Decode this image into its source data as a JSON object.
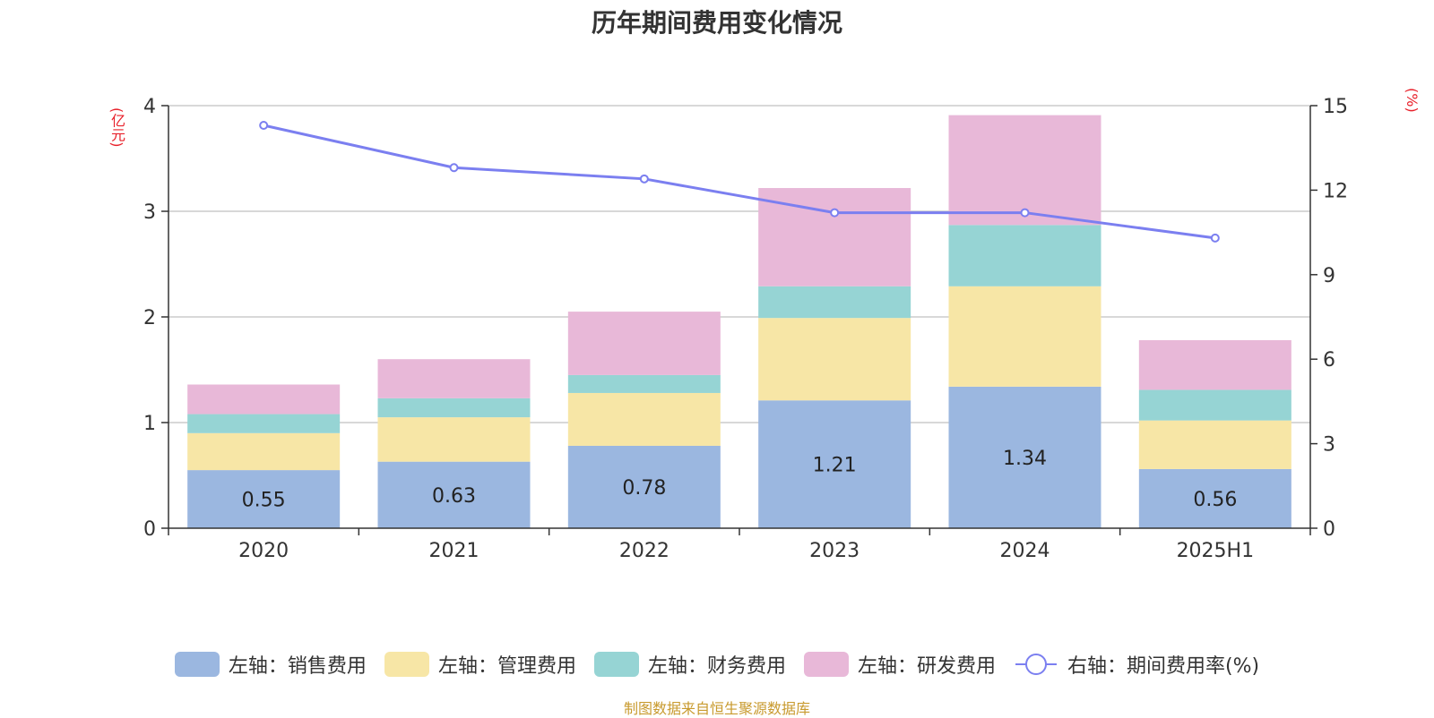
{
  "page": {
    "title": "历年期间费用变化情况",
    "left_unit": "(亿元)",
    "right_unit": "(%)",
    "source": "制图数据来自恒生聚源数据库"
  },
  "chart_data": {
    "type": "bar",
    "stacked": true,
    "title": "历年期间费用变化情况",
    "categories": [
      "2020",
      "2021",
      "2022",
      "2023",
      "2024",
      "2025H1"
    ],
    "left_axis": {
      "label": "(亿元)",
      "ylim": [
        0,
        4
      ],
      "ticks": [
        0,
        1,
        2,
        3,
        4
      ]
    },
    "right_axis": {
      "label": "(%)",
      "ylim": [
        0,
        15
      ],
      "ticks": [
        0,
        3,
        6,
        9,
        12,
        15
      ]
    },
    "grid": true,
    "legend_position": "bottom",
    "series": [
      {
        "name": "左轴：销售费用",
        "type": "bar",
        "axis": "left",
        "color": "#9bb7e0",
        "values": [
          0.55,
          0.63,
          0.78,
          1.21,
          1.34,
          0.56
        ],
        "show_labels": true,
        "labels": [
          "0.55",
          "0.63",
          "0.78",
          "1.21",
          "1.34",
          "0.56"
        ]
      },
      {
        "name": "左轴：管理费用",
        "type": "bar",
        "axis": "left",
        "color": "#f7e6a6",
        "values": [
          0.35,
          0.42,
          0.5,
          0.78,
          0.95,
          0.46
        ]
      },
      {
        "name": "左轴：财务费用",
        "type": "bar",
        "axis": "left",
        "color": "#96d4d4",
        "values": [
          0.18,
          0.18,
          0.17,
          0.3,
          0.58,
          0.29
        ]
      },
      {
        "name": "左轴：研发费用",
        "type": "bar",
        "axis": "left",
        "color": "#e8b8d8",
        "values": [
          0.28,
          0.37,
          0.6,
          0.93,
          1.04,
          0.47
        ]
      },
      {
        "name": "右轴：期间费用率(%)",
        "type": "line",
        "axis": "right",
        "color": "#7b7ff0",
        "values": [
          14.3,
          12.8,
          12.4,
          11.2,
          11.2,
          10.3
        ]
      }
    ]
  }
}
